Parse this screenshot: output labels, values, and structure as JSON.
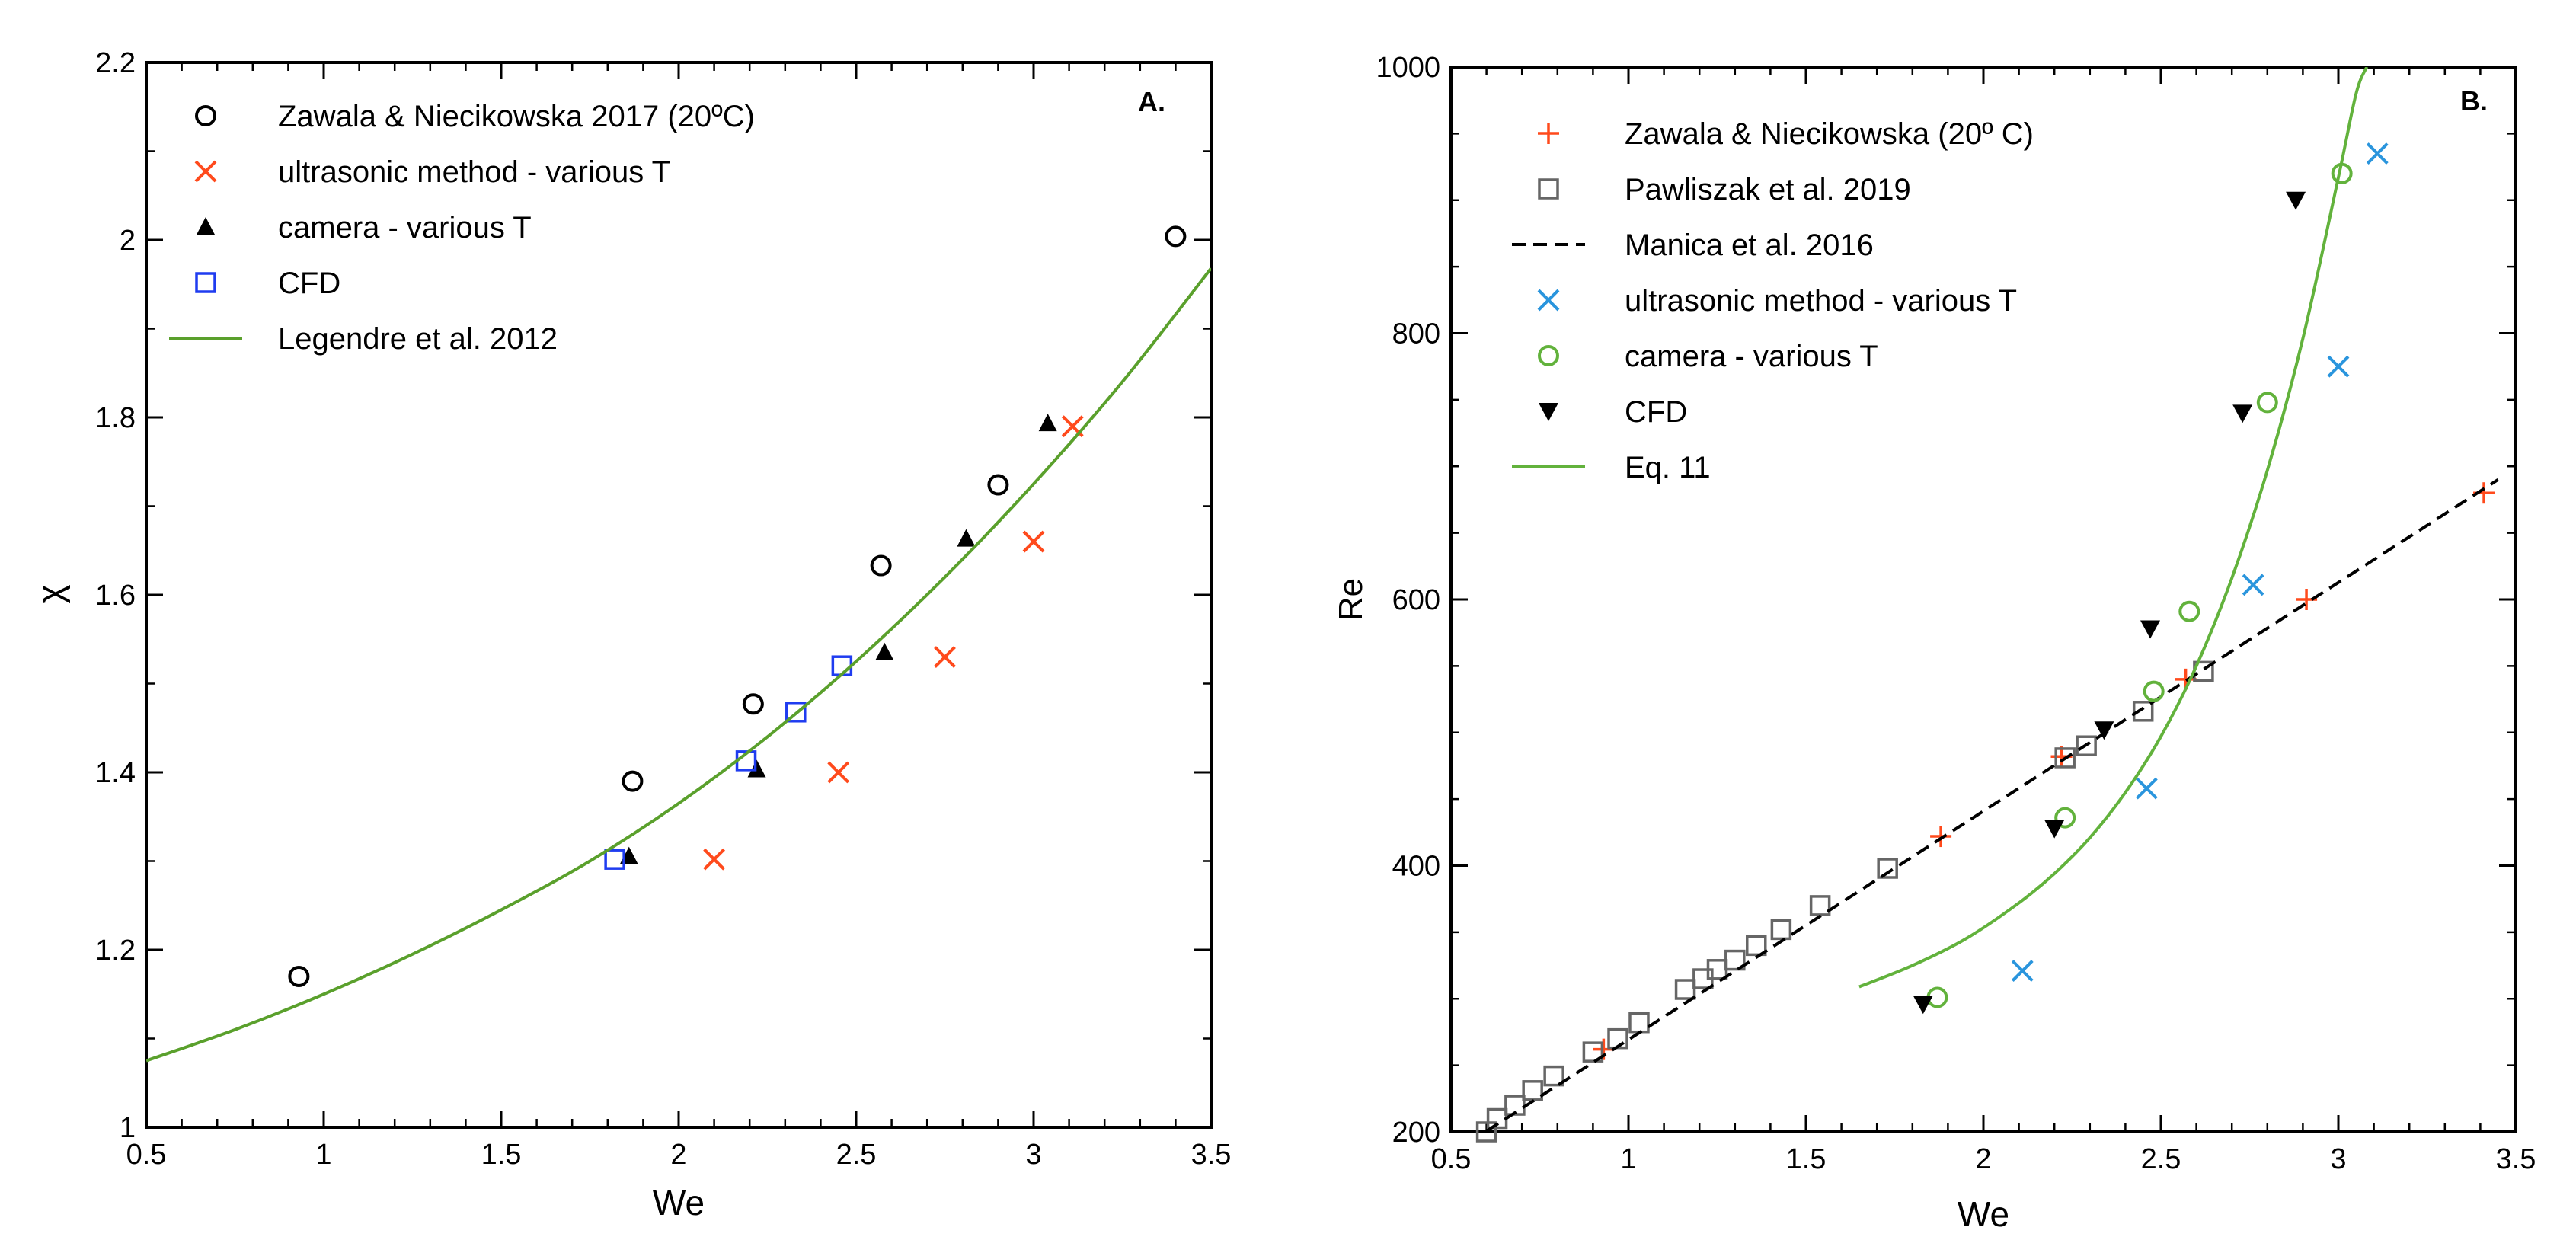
{
  "colors": {
    "black": "#000000",
    "orange": "#ff4a1c",
    "blue": "#1f3cf0",
    "green": "#5aa02c",
    "teal": "#2a95dd",
    "lightgreen": "#62b23c",
    "gray": "#666666"
  },
  "chart_data": [
    {
      "type": "scatter",
      "panel_label": "A.",
      "xlabel": "We",
      "ylabel": "χ",
      "xlim": [
        0.5,
        3.5
      ],
      "ylim": [
        1.0,
        2.2
      ],
      "xticks": [
        "0.5",
        "1",
        "1.5",
        "2",
        "2.5",
        "3",
        "3.5"
      ],
      "yticks": [
        "1",
        "1.2",
        "1.4",
        "1.6",
        "1.8",
        "2",
        "2.2"
      ],
      "legend_position": "top-left",
      "series": [
        {
          "name": "Zawala & Niecikowska 2017 (20ºC)",
          "marker": "circle-open",
          "color": "#000000",
          "x": [
            0.93,
            1.87,
            2.21,
            2.57,
            2.9,
            3.4
          ],
          "y": [
            1.17,
            1.39,
            1.477,
            1.633,
            1.724,
            2.004
          ]
        },
        {
          "name": "ultrasonic method - various T",
          "marker": "x",
          "color": "#ff4a1c",
          "x": [
            2.1,
            2.45,
            2.75,
            3.0,
            3.11
          ],
          "y": [
            1.302,
            1.4,
            1.53,
            1.66,
            1.79
          ]
        },
        {
          "name": "camera - various T",
          "marker": "triangle-filled",
          "color": "#000000",
          "x": [
            1.86,
            2.22,
            2.58,
            2.81,
            3.04
          ],
          "y": [
            1.305,
            1.403,
            1.535,
            1.663,
            1.793
          ]
        },
        {
          "name": "CFD",
          "marker": "square-open",
          "color": "#1f3cf0",
          "x": [
            1.82,
            2.19,
            2.33,
            2.46
          ],
          "y": [
            1.302,
            1.413,
            1.468,
            1.52
          ]
        },
        {
          "name": "Legendre et al. 2012",
          "marker": "line",
          "color": "#5aa02c",
          "x": [
            0.5,
            0.75,
            1.0,
            1.25,
            1.5,
            1.75,
            2.0,
            2.25,
            2.5,
            2.75,
            3.0,
            3.25,
            3.5
          ],
          "y": [
            1.075,
            1.11,
            1.15,
            1.195,
            1.245,
            1.3,
            1.365,
            1.44,
            1.525,
            1.62,
            1.725,
            1.84,
            1.968
          ]
        }
      ]
    },
    {
      "type": "scatter",
      "panel_label": "B.",
      "xlabel": "We",
      "ylabel": "Re",
      "xlim": [
        0.5,
        3.5
      ],
      "ylim": [
        200,
        1000
      ],
      "xticks": [
        "0.5",
        "1",
        "1.5",
        "2",
        "2.5",
        "3",
        "3.5"
      ],
      "yticks": [
        "200",
        "400",
        "600",
        "800",
        "1000"
      ],
      "legend_position": "top-left",
      "series": [
        {
          "name": "Zawala & Niecikowska (20º C)",
          "marker": "plus",
          "color": "#ff4a1c",
          "x": [
            0.93,
            1.88,
            2.22,
            2.57,
            2.91,
            3.41
          ],
          "y": [
            262,
            422,
            482,
            540,
            600,
            680
          ]
        },
        {
          "name": "Pawliszak et al. 2019",
          "marker": "square-open",
          "color": "#666666",
          "x": [
            0.6,
            0.63,
            0.68,
            0.73,
            0.79,
            0.9,
            0.97,
            1.03,
            1.16,
            1.21,
            1.25,
            1.3,
            1.36,
            1.43,
            1.54,
            1.73,
            2.23,
            2.29,
            2.45,
            2.62
          ],
          "y": [
            200,
            210,
            220,
            231,
            242,
            260,
            270,
            282,
            307,
            315,
            322,
            329,
            340,
            352,
            370,
            398,
            481,
            490,
            516,
            546
          ]
        },
        {
          "name": "Manica et al. 2016",
          "marker": "dashed-line",
          "color": "#000000",
          "x": [
            0.55,
            3.45
          ],
          "y": [
            192,
            690
          ]
        },
        {
          "name": "ultrasonic method - various T",
          "marker": "x",
          "color": "#2a95dd",
          "x": [
            2.11,
            2.46,
            2.76,
            3.0,
            3.11
          ],
          "y": [
            321,
            458,
            611,
            775,
            935
          ]
        },
        {
          "name": "camera - various T",
          "marker": "circle-open",
          "color": "#62b23c",
          "x": [
            1.87,
            2.23,
            2.48,
            2.58,
            2.8,
            3.01
          ],
          "y": [
            301,
            436,
            531,
            591,
            748,
            920
          ]
        },
        {
          "name": "CFD",
          "marker": "triangle-down-filled",
          "color": "#000000",
          "x": [
            1.83,
            2.2,
            2.34,
            2.47,
            2.73,
            2.88
          ],
          "y": [
            296,
            428,
            502,
            578,
            740,
            900
          ]
        },
        {
          "name": "Eq. 11",
          "marker": "line",
          "color": "#62b23c",
          "x": [
            1.65,
            1.8,
            1.95,
            2.1,
            2.2,
            2.3,
            2.4,
            2.5,
            2.6,
            2.7,
            2.8,
            2.9,
            3.0,
            3.05,
            3.08
          ],
          "y": [
            309,
            325,
            345,
            372,
            394,
            421,
            455,
            497,
            550,
            616,
            697,
            796,
            917,
            980,
            1000
          ]
        }
      ]
    }
  ]
}
